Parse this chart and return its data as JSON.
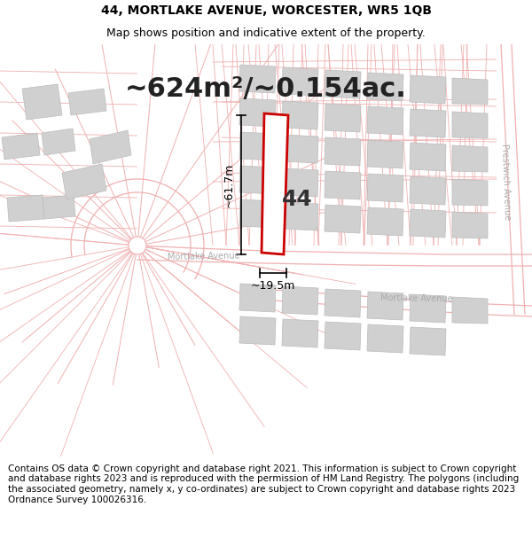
{
  "title_line1": "44, MORTLAKE AVENUE, WORCESTER, WR5 1QB",
  "title_line2": "Map shows position and indicative extent of the property.",
  "area_text": "~624m²/~0.154ac.",
  "label_44": "44",
  "dim_height": "~61.7m",
  "dim_width": "~19.5m",
  "road_label1": "Mortlake Avenue",
  "road_label2": "Mortlake Avenue",
  "road_label3": "Prestwich Avenue",
  "footer_text": "Contains OS data © Crown copyright and database right 2021. This information is subject to Crown copyright and database rights 2023 and is reproduced with the permission of HM Land Registry. The polygons (including the associated geometry, namely x, y co-ordinates) are subject to Crown copyright and database rights 2023 Ordnance Survey 100026316.",
  "bg_color": "#ffffff",
  "map_bg": "#ffffff",
  "plot_outline_color": "#cc0000",
  "map_line_color": "#f0b0b0",
  "gray_fill": "#d0d0d0",
  "title_fontsize": 10,
  "subtitle_fontsize": 9,
  "area_fontsize": 22,
  "label_fontsize": 18,
  "dim_fontsize": 9,
  "footer_fontsize": 7.5,
  "road_fontsize": 7
}
